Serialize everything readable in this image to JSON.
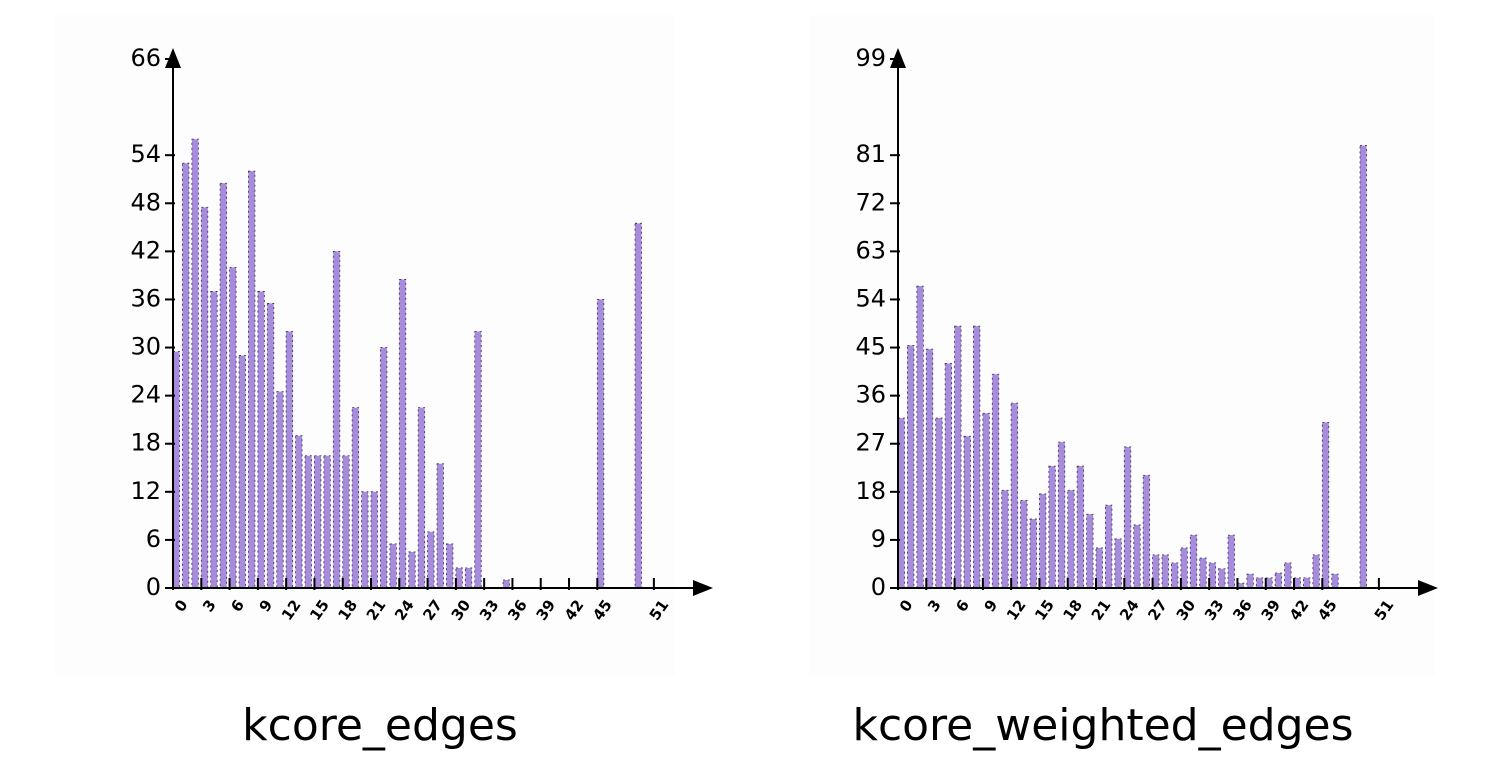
{
  "chart_data": [
    {
      "type": "bar",
      "title": "kcore_edges",
      "color": "#a68cdb",
      "x": [
        0,
        1,
        2,
        3,
        4,
        5,
        6,
        7,
        8,
        9,
        10,
        11,
        12,
        13,
        14,
        15,
        16,
        17,
        18,
        19,
        20,
        21,
        22,
        23,
        24,
        25,
        26,
        27,
        28,
        29,
        30,
        31,
        32,
        35,
        45,
        49
      ],
      "values": [
        29.5,
        53,
        56,
        47.5,
        37,
        50.5,
        40,
        29,
        52,
        37,
        35.5,
        24.5,
        32,
        19,
        16.5,
        16.5,
        16.5,
        42,
        16.5,
        22.5,
        12,
        12,
        30,
        5.5,
        38.5,
        4.5,
        22.5,
        7,
        15.5,
        5.5,
        2.5,
        2.5,
        32,
        1,
        36,
        45.5
      ],
      "xlim": [
        0,
        55
      ],
      "ylim": [
        0,
        66
      ],
      "xticks": [
        0,
        3,
        6,
        9,
        12,
        15,
        18,
        21,
        24,
        27,
        30,
        33,
        36,
        39,
        42,
        45,
        51
      ],
      "yticks": [
        0,
        6,
        12,
        18,
        24,
        30,
        36,
        42,
        48,
        54,
        66
      ]
    },
    {
      "type": "bar",
      "title": "kcore_weighted_edges",
      "color": "#a68cdb",
      "x": [
        0,
        1,
        2,
        3,
        4,
        5,
        6,
        7,
        8,
        9,
        10,
        11,
        12,
        13,
        14,
        15,
        16,
        17,
        18,
        19,
        20,
        21,
        22,
        23,
        24,
        25,
        26,
        27,
        28,
        29,
        30,
        31,
        32,
        33,
        34,
        35,
        36,
        37,
        38,
        39,
        40,
        41,
        42,
        43,
        44,
        45,
        46,
        49
      ],
      "values": [
        31.8,
        45.4,
        56.5,
        44.7,
        31.8,
        42,
        49,
        28.4,
        49,
        32.7,
        40,
        18.3,
        34.6,
        16.4,
        12.9,
        17.6,
        22.8,
        27.3,
        18.3,
        22.8,
        13.8,
        7.5,
        15.5,
        9.2,
        26.4,
        11.8,
        21.1,
        6.2,
        6.2,
        4.7,
        7.5,
        9.9,
        5.6,
        4.7,
        3.6,
        9.9,
        0.9,
        2.6,
        1.9,
        1.9,
        2.8,
        4.7,
        1.9,
        1.9,
        6.2,
        31,
        2.6,
        82.8
      ],
      "xlim": [
        0,
        55
      ],
      "ylim": [
        0,
        99
      ],
      "xticks": [
        0,
        3,
        6,
        9,
        12,
        15,
        18,
        21,
        24,
        27,
        30,
        33,
        36,
        39,
        42,
        45,
        51
      ],
      "yticks": [
        0,
        9,
        18,
        27,
        36,
        45,
        54,
        63,
        72,
        81,
        99
      ]
    }
  ]
}
